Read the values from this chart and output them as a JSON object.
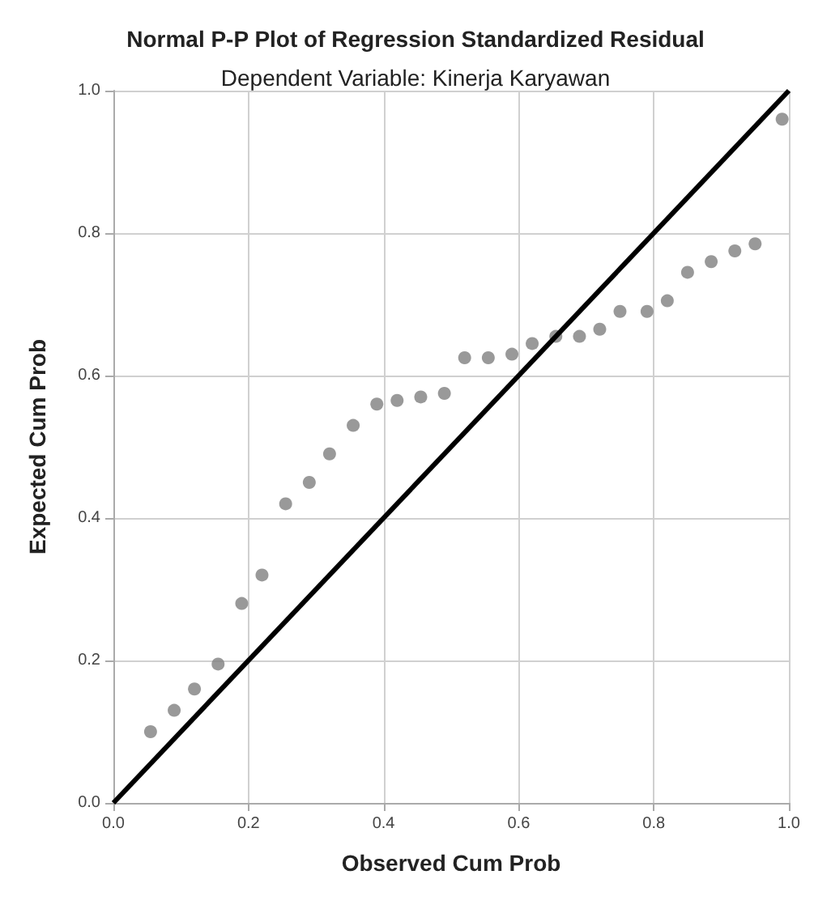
{
  "chart_data": {
    "type": "scatter",
    "title": "Normal P-P Plot of Regression Standardized Residual",
    "subtitle": "Dependent Variable: Kinerja Karyawan",
    "xlabel": "Observed Cum Prob",
    "ylabel": "Expected Cum Prob",
    "series": [
      {
        "marker": "circle",
        "color": "#7f7f7f",
        "x": [
          0.055,
          0.09,
          0.12,
          0.155,
          0.19,
          0.22,
          0.255,
          0.29,
          0.32,
          0.355,
          0.39,
          0.42,
          0.455,
          0.49,
          0.52,
          0.555,
          0.59,
          0.62,
          0.655,
          0.69,
          0.72,
          0.75,
          0.79,
          0.82,
          0.85,
          0.885,
          0.92,
          0.95,
          0.99
        ],
        "values": [
          0.1,
          0.13,
          0.16,
          0.195,
          0.28,
          0.32,
          0.42,
          0.45,
          0.49,
          0.53,
          0.56,
          0.565,
          0.57,
          0.575,
          0.625,
          0.625,
          0.63,
          0.645,
          0.655,
          0.655,
          0.665,
          0.69,
          0.69,
          0.705,
          0.745,
          0.76,
          0.775,
          0.785,
          0.96
        ]
      },
      {
        "type": "line",
        "marker": "none",
        "color": "#000000",
        "x": [
          0,
          1
        ],
        "values": [
          0,
          1
        ]
      }
    ],
    "xlim": [
      0,
      1
    ],
    "ylim": [
      0,
      1
    ],
    "xticks": [
      {
        "value": 0,
        "label": "0.0"
      },
      0.2,
      0.4,
      0.6,
      0.8,
      {
        "value": 1,
        "label": "1.0"
      }
    ],
    "yticks": [
      {
        "value": 0,
        "label": "0.0"
      },
      0.2,
      0.4,
      0.6,
      0.8,
      {
        "value": 1,
        "label": "1.0"
      }
    ],
    "grid": true
  }
}
